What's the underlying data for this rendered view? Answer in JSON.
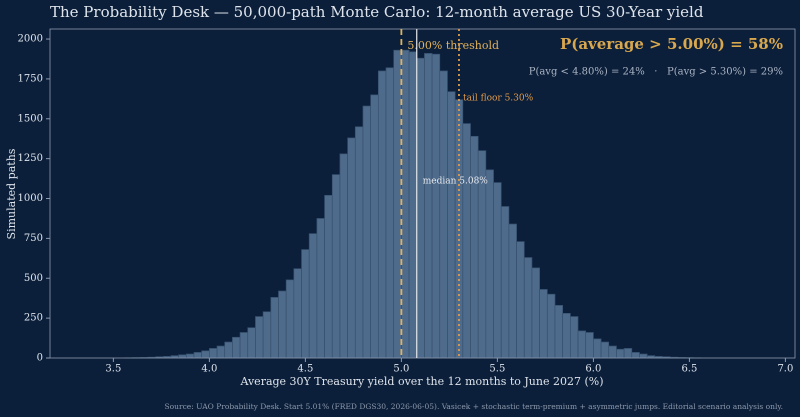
{
  "chart_data": {
    "type": "histogram",
    "title": "The Probability Desk — 50,000-path Monte Carlo: 12-month average US 30-Year yield",
    "x_label": "Average 30Y Treasury yield over the 12 months to June 2027 (%)",
    "y_label": "Simulated paths",
    "headline": "P(average > 5.00%) = 58%",
    "subline": "P(avg < 4.80%) = 24%   ·   P(avg > 5.30%) = 29%",
    "source": "Source: UAO Probability Desk. Start 5.01% (FRED DGS30, 2026-06-05). Vasicek + stochastic term-premium + asymmetric jumps. Editorial scenario analysis only.",
    "bins": [
      3.56,
      3.6,
      3.64,
      3.68,
      3.72,
      3.76,
      3.8,
      3.84,
      3.88,
      3.92,
      3.96,
      4,
      4.04,
      4.08,
      4.12,
      4.16,
      4.2,
      4.24,
      4.28,
      4.32,
      4.36,
      4.4,
      4.44,
      4.48,
      4.52,
      4.56,
      4.6,
      4.64,
      4.68,
      4.72,
      4.76,
      4.8,
      4.84,
      4.88,
      4.92,
      4.96,
      5,
      5.04,
      5.08,
      5.12,
      5.16,
      5.2,
      5.24,
      5.28,
      5.32,
      5.36,
      5.4,
      5.44,
      5.48,
      5.52,
      5.56,
      5.6,
      5.64,
      5.68,
      5.72,
      5.76,
      5.8,
      5.84,
      5.88,
      5.92,
      5.96,
      6,
      6.04,
      6.08,
      6.12,
      6.16,
      6.2,
      6.24,
      6.28,
      6.32,
      6.36,
      6.4,
      6.44,
      6.48,
      6.52,
      6.56
    ],
    "values": [
      1,
      2,
      3,
      5,
      8,
      10,
      15,
      20,
      25,
      35,
      45,
      60,
      75,
      100,
      130,
      160,
      190,
      260,
      290,
      380,
      420,
      490,
      560,
      680,
      780,
      875,
      1020,
      1150,
      1280,
      1380,
      1450,
      1580,
      1650,
      1800,
      1820,
      1930,
      1930,
      1920,
      1880,
      1910,
      1905,
      1800,
      1670,
      1620,
      1470,
      1390,
      1300,
      1180,
      1100,
      950,
      840,
      730,
      630,
      565,
      430,
      400,
      330,
      280,
      260,
      170,
      160,
      120,
      100,
      75,
      55,
      60,
      35,
      25,
      15,
      10,
      8,
      5,
      3,
      2,
      1
    ],
    "color": "#4f6b8c",
    "xlim": [
      3.17,
      7.05
    ],
    "ylim": [
      0,
      2063
    ],
    "xticks": [
      3.5,
      {
        "value": 4,
        "label": "4.0"
      },
      4.5,
      {
        "value": 5,
        "label": "5.0"
      },
      5.5,
      {
        "value": 6,
        "label": "6.0"
      },
      6.5,
      {
        "value": 7,
        "label": "7.0"
      }
    ],
    "yticks": [
      0,
      250,
      500,
      750,
      1000,
      1250,
      1500,
      1750,
      2000
    ],
    "annotations": [
      {
        "x": 5.0,
        "label": "5.00% threshold",
        "style": "dashed",
        "color": "#e2b25a"
      },
      {
        "x": 5.08,
        "label": "median 5.08%",
        "style": "solid",
        "color": "#e6e9ee"
      },
      {
        "x": 5.3,
        "label": "tail floor 5.30%",
        "style": "dotted",
        "color": "#e09a4a"
      }
    ]
  }
}
